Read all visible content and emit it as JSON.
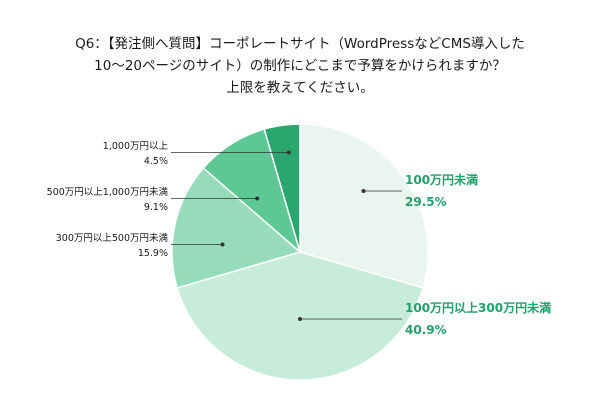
{
  "chart_data": {
    "type": "pie",
    "title_lines": [
      "Q6：【発注側へ質問】コーポレートサイト（WordPressなどCMS導入した",
      "10〜20ページのサイト）の制作にどこまで予算をかけられますか？",
      "上限を教えてください。"
    ],
    "slices": [
      {
        "label": "100万円未満",
        "value": 29.5,
        "value_label": "29.5%",
        "color": "#e8f6ef"
      },
      {
        "label": "100万円以上300万円未満",
        "value": 40.9,
        "value_label": "40.9%",
        "color": "#c8ecda"
      },
      {
        "label": "300万円以上500万円未満",
        "value": 15.9,
        "value_label": "15.9%",
        "color": "#97dcba"
      },
      {
        "label": "500万円以上1,000万円未満",
        "value": 9.1,
        "value_label": "9.1%",
        "color": "#5ec895"
      },
      {
        "label": "1,000万円以上",
        "value": 4.5,
        "value_label": "4.5%",
        "color": "#2aa66e"
      }
    ]
  }
}
